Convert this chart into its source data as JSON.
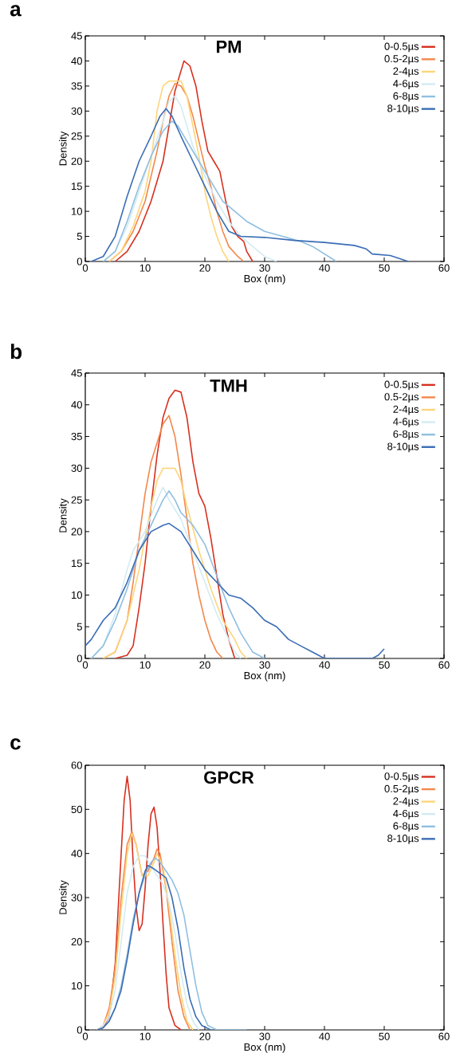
{
  "chart_data": [
    {
      "type": "line",
      "title": "PM",
      "xlabel": "Box (nm)",
      "ylabel": "Density",
      "annotations": [
        "a"
      ],
      "xlim": [
        0,
        60
      ],
      "ylim": [
        0,
        45
      ],
      "xticks": [
        0,
        10,
        20,
        30,
        40,
        50,
        60
      ],
      "yticks": [
        0,
        5,
        10,
        15,
        20,
        25,
        30,
        35,
        40,
        45
      ],
      "legend": "top right",
      "series": [
        {
          "name": "0-0.5µs",
          "color": "#d7301f",
          "x": [
            5,
            7,
            9,
            11,
            13,
            14,
            15,
            16,
            16.5,
            17.5,
            18.5,
            19.5,
            20.5,
            21.5,
            22.5,
            23.5,
            24.5,
            25.5,
            26.5,
            27,
            28
          ],
          "values": [
            0,
            2,
            6,
            12,
            20,
            27,
            34,
            38,
            40,
            39,
            35,
            28,
            22,
            20,
            18,
            12,
            7,
            5,
            4,
            2,
            0
          ]
        },
        {
          "name": "0.5-2µs",
          "color": "#f4874b",
          "x": [
            4,
            6,
            8,
            10,
            12,
            13,
            14,
            15,
            16,
            17,
            18,
            19,
            20,
            21,
            22,
            23,
            24,
            25.5,
            26.5
          ],
          "values": [
            0,
            2,
            6,
            12,
            22,
            28,
            33,
            35.5,
            35,
            33,
            29,
            24,
            19,
            15,
            10,
            6,
            3,
            1,
            0
          ]
        },
        {
          "name": "2-4µs",
          "color": "#fdd57a",
          "x": [
            4,
            6,
            8,
            10,
            11,
            12,
            13,
            14,
            16,
            17,
            18,
            19,
            20,
            21,
            22,
            23,
            24
          ],
          "values": [
            0,
            2,
            7,
            14,
            20,
            30,
            35,
            36,
            36,
            33,
            27,
            21,
            14,
            9,
            5,
            2,
            0
          ]
        },
        {
          "name": "4-6µs",
          "color": "#d3ebf3",
          "x": [
            3,
            5,
            7,
            9,
            11,
            13,
            14,
            15,
            16,
            17,
            18,
            19,
            20,
            22,
            24,
            26,
            28,
            30,
            32
          ],
          "values": [
            0,
            2,
            7,
            14,
            21,
            28,
            32,
            33,
            31,
            27,
            23,
            20,
            17,
            12,
            8,
            5,
            3,
            1,
            0
          ]
        },
        {
          "name": "6-8µs",
          "color": "#8fbfe0",
          "x": [
            3,
            5,
            7,
            9,
            11,
            13,
            14.5,
            15.5,
            17,
            19,
            21,
            23,
            25,
            27,
            30,
            33,
            36,
            38,
            40,
            42
          ],
          "values": [
            0,
            2,
            8,
            15,
            21,
            26,
            28,
            27,
            24,
            20,
            16,
            12,
            10,
            8,
            6,
            5,
            4,
            3,
            1.5,
            0
          ]
        },
        {
          "name": "8-10µs",
          "color": "#3a6db5",
          "x": [
            1,
            3,
            5,
            7,
            9,
            11,
            12.5,
            13.5,
            14.5,
            16,
            18,
            20,
            22,
            24,
            26,
            30,
            35,
            40,
            45,
            47,
            48,
            51,
            52,
            54
          ],
          "values": [
            0,
            1,
            5,
            13,
            20,
            25,
            29,
            30.5,
            29,
            25,
            20,
            15,
            10,
            6,
            5,
            4.8,
            4.2,
            3.8,
            3.2,
            2.5,
            1.5,
            1.2,
            0.8,
            0
          ]
        }
      ]
    },
    {
      "type": "line",
      "title": "TMH",
      "xlabel": "Box (nm)",
      "ylabel": "Density",
      "annotations": [
        "b"
      ],
      "xlim": [
        0,
        60
      ],
      "ylim": [
        0,
        45
      ],
      "xticks": [
        0,
        10,
        20,
        30,
        40,
        50,
        60
      ],
      "yticks": [
        0,
        5,
        10,
        15,
        20,
        25,
        30,
        35,
        40,
        45
      ],
      "legend": "top right",
      "series": [
        {
          "name": "0-0.5µs",
          "color": "#d7301f",
          "x": [
            5,
            7,
            8,
            9,
            10,
            11,
            12,
            13,
            14,
            15,
            16,
            17,
            18,
            19,
            20,
            21,
            22,
            23,
            24,
            25
          ],
          "values": [
            0,
            0.5,
            2,
            8,
            15,
            24,
            32,
            38,
            41,
            42.3,
            42,
            38,
            31,
            26,
            24,
            19,
            13,
            7,
            3,
            0
          ]
        },
        {
          "name": "0.5-2µs",
          "color": "#f4874b",
          "x": [
            3,
            5,
            7,
            8,
            9,
            10,
            11,
            12,
            13,
            14,
            15,
            16,
            17,
            18,
            19,
            20,
            21,
            22,
            23
          ],
          "values": [
            0,
            1,
            6,
            12,
            19,
            26,
            31,
            34,
            37,
            38.3,
            35,
            29,
            22,
            15,
            10,
            6,
            3,
            1,
            0
          ]
        },
        {
          "name": "2-4µs",
          "color": "#fdd57a",
          "x": [
            3,
            5,
            7,
            9,
            11,
            12,
            13,
            15,
            16,
            17,
            19,
            21,
            23,
            25,
            26,
            27
          ],
          "values": [
            0,
            1,
            6,
            14,
            24,
            28,
            30,
            30,
            28,
            24,
            17,
            11,
            6,
            3,
            1,
            0
          ]
        },
        {
          "name": "4-6µs",
          "color": "#d3ebf3",
          "x": [
            1,
            3,
            5,
            7,
            8,
            10,
            12,
            13,
            14,
            16,
            18,
            20,
            22,
            24,
            25,
            26
          ],
          "values": [
            0,
            2,
            7,
            14,
            17,
            20,
            25,
            27,
            25,
            22,
            17,
            12,
            7,
            3,
            1,
            0
          ]
        },
        {
          "name": "6-8µs",
          "color": "#8fbfe0",
          "x": [
            1,
            3,
            5,
            7,
            9,
            11,
            13,
            14,
            15,
            16,
            18,
            20,
            22,
            24,
            26,
            28,
            30
          ],
          "values": [
            0,
            2,
            6,
            11,
            17,
            21,
            25,
            26.4,
            25,
            23,
            21,
            18,
            13,
            8,
            4,
            1,
            0
          ]
        },
        {
          "name": "8-10µs",
          "color": "#3a6db5",
          "x": [
            0,
            1,
            3,
            5,
            7,
            9,
            11,
            13,
            14,
            16,
            18,
            20,
            22,
            24,
            26,
            28,
            30,
            32,
            34,
            36,
            38,
            40,
            48,
            49,
            50
          ],
          "values": [
            2,
            3,
            6,
            8,
            12,
            17,
            20,
            21,
            21.3,
            20,
            17,
            14,
            12,
            10,
            9.5,
            8,
            6,
            5,
            3,
            2,
            1,
            0,
            0,
            0.5,
            1.5
          ]
        }
      ]
    },
    {
      "type": "line",
      "title": "GPCR",
      "xlabel": "Box (nm)",
      "ylabel": "Density",
      "annotations": [
        "c"
      ],
      "xlim": [
        0,
        60
      ],
      "ylim": [
        0,
        60
      ],
      "xticks": [
        0,
        10,
        20,
        30,
        40,
        50,
        60
      ],
      "yticks": [
        0,
        10,
        20,
        30,
        40,
        50,
        60
      ],
      "legend": "top right",
      "series": [
        {
          "name": "0-0.5µs",
          "color": "#d7301f",
          "x": [
            2,
            3,
            4,
            5,
            6,
            6.5,
            7,
            7.5,
            8,
            8.5,
            9,
            9.5,
            10,
            10.5,
            11,
            11.5,
            12,
            12.5,
            13,
            13.5,
            14,
            15,
            16
          ],
          "values": [
            0,
            0.5,
            3,
            15,
            40,
            52,
            57.5,
            52,
            38,
            28,
            22.5,
            24,
            32,
            42,
            49,
            50.5,
            46,
            36,
            24,
            13,
            5,
            1,
            0
          ]
        },
        {
          "name": "0.5-2µs",
          "color": "#f4874b",
          "x": [
            2,
            3,
            4,
            5,
            6,
            7,
            7.8,
            8.5,
            9.5,
            10.5,
            11.5,
            12,
            12.5,
            13.5,
            14.5,
            15.5,
            16.5,
            17.5
          ],
          "values": [
            0,
            1,
            5,
            14,
            30,
            42,
            45,
            42,
            35,
            36,
            39,
            41,
            40,
            32,
            20,
            9,
            3,
            0
          ]
        },
        {
          "name": "2-4µs",
          "color": "#fdd57a",
          "x": [
            2,
            3,
            4,
            5,
            6,
            7,
            7.8,
            8.5,
            9.5,
            10.5,
            11.5,
            12,
            13,
            14,
            15,
            16,
            17,
            18
          ],
          "values": [
            0,
            1,
            4,
            12,
            27,
            40,
            44.5,
            42,
            35,
            35,
            38,
            40,
            37,
            28,
            17,
            8,
            2,
            0
          ]
        },
        {
          "name": "4-6µs",
          "color": "#d3ebf3",
          "x": [
            2,
            3,
            4,
            5,
            6,
            7,
            8,
            9,
            10,
            11,
            12,
            13,
            14,
            15,
            16,
            17,
            18,
            19
          ],
          "values": [
            0,
            1,
            3,
            9,
            20,
            31,
            37,
            39.5,
            39.5,
            37,
            35,
            33,
            29,
            22,
            13,
            6,
            2,
            0
          ]
        },
        {
          "name": "6-8µs",
          "color": "#8fbfe0",
          "x": [
            2,
            3,
            4,
            5,
            6,
            7,
            8,
            9,
            10,
            11,
            11.7,
            12.5,
            13.5,
            14.5,
            15.5,
            16.5,
            17.5,
            18.5,
            19.5,
            20.5,
            22,
            27
          ],
          "values": [
            0,
            0.5,
            2,
            5,
            10,
            17,
            25,
            31,
            35,
            38,
            39,
            38,
            36,
            34,
            31,
            26,
            18,
            10,
            4,
            1,
            0,
            0
          ]
        },
        {
          "name": "8-10µs",
          "color": "#3a6db5",
          "x": [
            2,
            3,
            4,
            5,
            6,
            7,
            8,
            9,
            10,
            10.5,
            11.5,
            12.5,
            13.5,
            14.5,
            15.5,
            16.5,
            17.5,
            18.5,
            19.5,
            21
          ],
          "values": [
            0,
            0.5,
            2,
            5,
            9,
            16,
            24,
            31,
            36,
            37.3,
            36.5,
            35.5,
            34.5,
            30,
            23,
            14,
            7,
            3,
            1,
            0
          ]
        }
      ]
    }
  ]
}
